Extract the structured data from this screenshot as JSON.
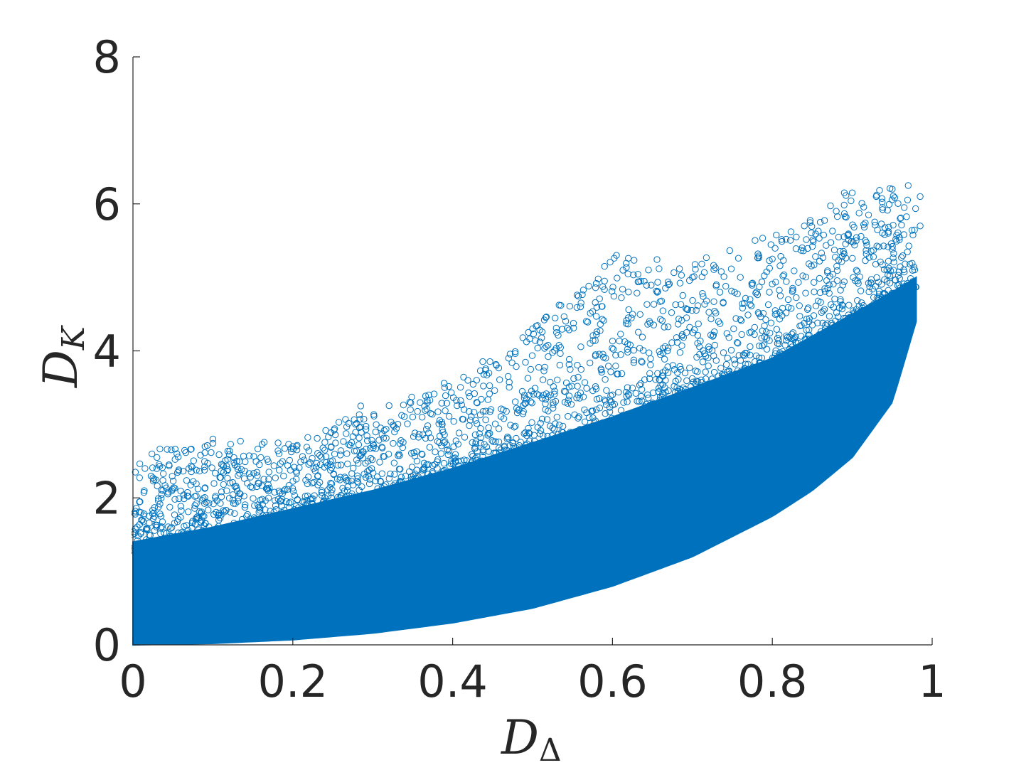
{
  "chart_data": {
    "type": "scatter",
    "title": "",
    "marker": "open-circle",
    "color": "#0072BD",
    "xlabel": {
      "main": "D",
      "sub": "Δ"
    },
    "ylabel": {
      "main": "D",
      "sub": "K"
    },
    "xlim": [
      0,
      1
    ],
    "ylim": [
      0,
      8
    ],
    "xticks": [
      0,
      0.2,
      0.4,
      0.6,
      0.8,
      1
    ],
    "xtick_labels": [
      "0",
      "0.2",
      "0.4",
      "0.6",
      "0.8",
      "1"
    ],
    "yticks": [
      0,
      2,
      4,
      6,
      8
    ],
    "ytick_labels": [
      "0",
      "2",
      "4",
      "6",
      "8"
    ],
    "grid": false,
    "legend": "none",
    "series": [
      {
        "cloud_envelope": {
          "x": [
            0.0,
            0.1,
            0.2,
            0.3,
            0.4,
            0.5,
            0.6,
            0.7,
            0.8,
            0.85,
            0.9,
            0.95,
            0.98
          ],
          "lower": [
            0.0,
            0.02,
            0.07,
            0.16,
            0.3,
            0.5,
            0.8,
            1.2,
            1.75,
            2.1,
            2.55,
            3.3,
            4.4
          ],
          "dense_upper": [
            1.4,
            1.6,
            1.85,
            2.1,
            2.4,
            2.75,
            3.1,
            3.5,
            3.9,
            4.2,
            4.5,
            4.8,
            5.0
          ],
          "max": [
            2.6,
            2.8,
            2.75,
            3.25,
            3.6,
            4.3,
            5.3,
            5.2,
            5.6,
            5.8,
            6.2,
            6.25,
            6.1
          ]
        },
        "outliers": [
          [
            0.003,
            2.35
          ],
          [
            0.015,
            2.4
          ],
          [
            0.03,
            2.55
          ],
          [
            0.045,
            2.45
          ],
          [
            0.055,
            2.6
          ],
          [
            0.07,
            2.4
          ],
          [
            0.1,
            2.8
          ],
          [
            0.13,
            2.5
          ],
          [
            0.16,
            2.55
          ],
          [
            0.2,
            2.7
          ],
          [
            0.24,
            2.65
          ],
          [
            0.285,
            3.25
          ],
          [
            0.31,
            2.95
          ],
          [
            0.35,
            3.1
          ],
          [
            0.37,
            3.4
          ],
          [
            0.39,
            3.5
          ],
          [
            0.43,
            3.6
          ],
          [
            0.47,
            3.9
          ],
          [
            0.5,
            4.3
          ],
          [
            0.53,
            4.25
          ],
          [
            0.56,
            4.6
          ],
          [
            0.59,
            5.15
          ],
          [
            0.59,
            4.95
          ],
          [
            0.605,
            5.3
          ],
          [
            0.62,
            4.8
          ],
          [
            0.645,
            5.1
          ],
          [
            0.67,
            4.9
          ],
          [
            0.7,
            5.0
          ],
          [
            0.73,
            4.9
          ],
          [
            0.76,
            5.0
          ],
          [
            0.8,
            5.25
          ],
          [
            0.83,
            5.55
          ],
          [
            0.84,
            5.7
          ],
          [
            0.86,
            5.75
          ],
          [
            0.88,
            5.9
          ],
          [
            0.89,
            6.15
          ],
          [
            0.9,
            6.15
          ],
          [
            0.93,
            6.1
          ],
          [
            0.95,
            6.2
          ],
          [
            0.97,
            6.25
          ],
          [
            0.985,
            6.1
          ],
          [
            0.965,
            5.95
          ],
          [
            0.985,
            5.7
          ],
          [
            0.96,
            5.8
          ],
          [
            0.945,
            5.6
          ]
        ]
      }
    ]
  }
}
